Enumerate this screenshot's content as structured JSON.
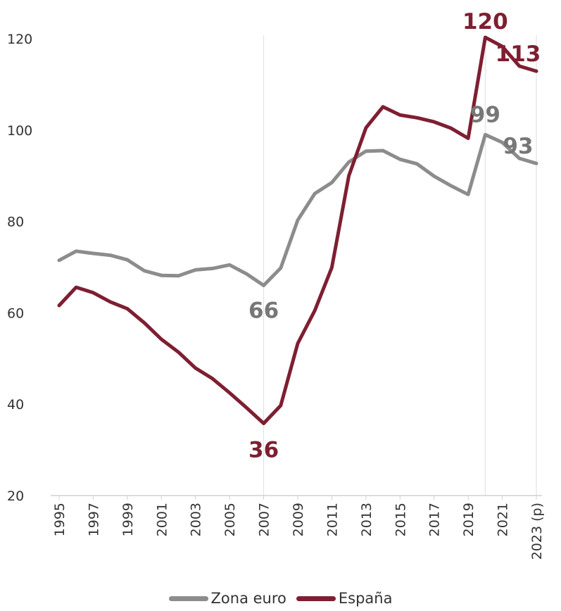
{
  "colors": {
    "zona_euro": "#8c8c8c",
    "espana": "#7e1f31",
    "axis": "#d0d0d0",
    "text": "#333333",
    "leader": "#dedede"
  },
  "chart_data": {
    "type": "line",
    "title": "",
    "xlabel": "",
    "ylabel": "",
    "ylim": [
      20,
      120
    ],
    "yticks": [
      "20",
      "40",
      "60",
      "80",
      "100",
      "120"
    ],
    "x": [
      1995,
      1996,
      1997,
      1998,
      1999,
      2000,
      2001,
      2002,
      2003,
      2004,
      2005,
      2006,
      2007,
      2008,
      2009,
      2010,
      2011,
      2012,
      2013,
      2014,
      2015,
      2016,
      2017,
      2018,
      2019,
      2020,
      2021,
      2022,
      2023
    ],
    "xticks": [
      {
        "x": 1995,
        "label": "1995"
      },
      {
        "x": 1997,
        "label": "1997"
      },
      {
        "x": 1999,
        "label": "1999"
      },
      {
        "x": 2001,
        "label": "2001"
      },
      {
        "x": 2003,
        "label": "2003"
      },
      {
        "x": 2005,
        "label": "2005"
      },
      {
        "x": 2007,
        "label": "2007"
      },
      {
        "x": 2009,
        "label": "2009"
      },
      {
        "x": 2011,
        "label": "2011"
      },
      {
        "x": 2013,
        "label": "2013"
      },
      {
        "x": 2015,
        "label": "2015"
      },
      {
        "x": 2017,
        "label": "2017"
      },
      {
        "x": 2019,
        "label": "2019"
      },
      {
        "x": 2021,
        "label": "2021"
      },
      {
        "x": 2023,
        "label": "2023 (p)"
      }
    ],
    "grid": false,
    "legend_position": "bottom",
    "series": [
      {
        "name": "Zona euro",
        "color_key": "zona_euro",
        "values": [
          71.5,
          73.5,
          73.0,
          72.6,
          71.6,
          69.2,
          68.2,
          68.1,
          69.4,
          69.7,
          70.5,
          68.5,
          66.0,
          69.8,
          80.3,
          86.1,
          88.5,
          93.0,
          95.4,
          95.5,
          93.6,
          92.6,
          89.9,
          87.8,
          85.9,
          99.0,
          97.3,
          93.8,
          92.7
        ],
        "labels": [
          {
            "x": 2007,
            "text": "66"
          },
          {
            "x": 2020,
            "text": "99"
          },
          {
            "x": 2023,
            "text": "93"
          }
        ]
      },
      {
        "name": "España",
        "color_key": "espana",
        "values": [
          61.6,
          65.6,
          64.4,
          62.4,
          60.9,
          57.8,
          54.2,
          51.4,
          47.9,
          45.6,
          42.5,
          39.2,
          35.8,
          39.7,
          53.3,
          60.5,
          69.9,
          90.0,
          100.5,
          105.1,
          103.3,
          102.7,
          101.8,
          100.4,
          98.2,
          120.3,
          118.3,
          114.0,
          112.9
        ],
        "labels": [
          {
            "x": 2007,
            "text": "36"
          },
          {
            "x": 2020,
            "text": "120"
          },
          {
            "x": 2023,
            "text": "113"
          }
        ]
      }
    ]
  }
}
